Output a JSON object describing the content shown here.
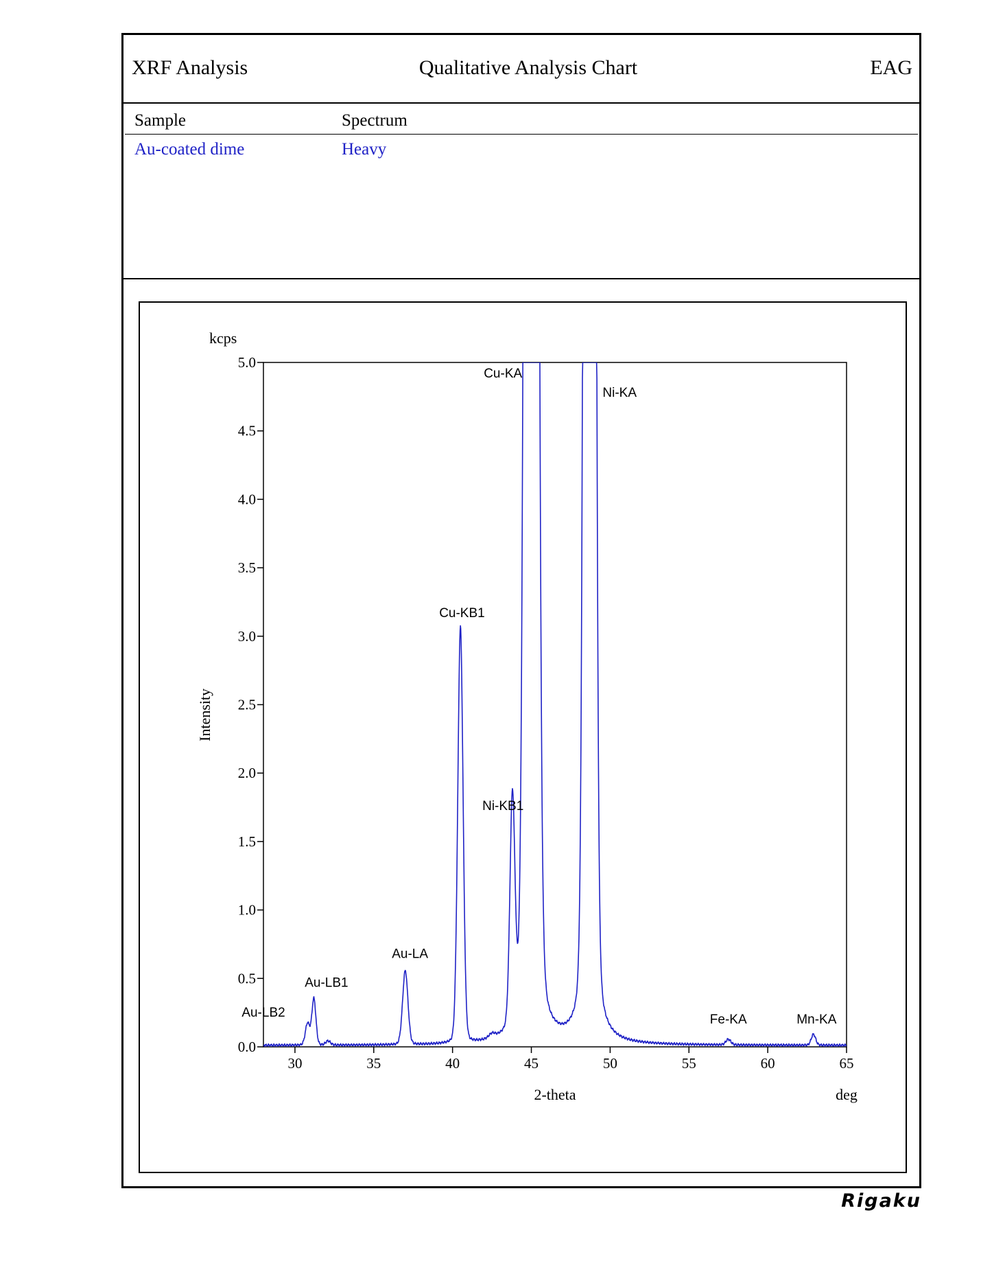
{
  "header": {
    "left_title": "XRF Analysis",
    "center_title": "Qualitative Analysis Chart",
    "right_title": "EAG"
  },
  "info": {
    "sample_label": "Sample",
    "spectrum_label": "Spectrum",
    "sample_value": "Au-coated dime",
    "spectrum_value": "Heavy"
  },
  "brand": {
    "name": "Rigaku"
  },
  "colors": {
    "trace": "#1f22c6",
    "text_value": "#1f22c6",
    "frame": "#000000"
  },
  "chart_data": {
    "type": "line",
    "title": "",
    "xlabel": "2-theta",
    "xunit": "deg",
    "ylabel": "Intensity",
    "yunit": "kcps",
    "xlim": [
      28,
      65
    ],
    "ylim": [
      0,
      5
    ],
    "x_ticks": [
      30,
      35,
      40,
      45,
      50,
      55,
      60,
      65
    ],
    "y_ticks": [
      "0.0",
      "0.5",
      "1.0",
      "1.5",
      "2.0",
      "2.5",
      "3.0",
      "3.5",
      "4.0",
      "4.5",
      "5.0"
    ],
    "grid": false,
    "baseline": 0.01,
    "peaks": [
      {
        "label": "Au-LB2",
        "x": 30.8,
        "y": 0.16,
        "width": 0.14,
        "label_x": 28.0,
        "label_y": 0.22
      },
      {
        "label": "Au-LB1",
        "x": 31.2,
        "y": 0.34,
        "width": 0.13,
        "label_x": 32.0,
        "label_y": 0.44
      },
      {
        "label": "",
        "x": 32.1,
        "y": 0.03,
        "width": 0.15
      },
      {
        "label": "Au-LA",
        "x": 37.0,
        "y": 0.54,
        "width": 0.17,
        "label_x": 37.3,
        "label_y": 0.65
      },
      {
        "label": "Cu-KB1",
        "x": 40.5,
        "y": 3.04,
        "width": 0.17,
        "label_x": 40.6,
        "label_y": 3.14
      },
      {
        "label": "",
        "x": 42.5,
        "y": 0.03,
        "width": 0.2
      },
      {
        "label": "Ni-KB1",
        "x": 43.8,
        "y": 1.65,
        "width": 0.16,
        "label_x": 43.2,
        "label_y": 1.73
      },
      {
        "label": "Cu-KA",
        "x": 45.0,
        "y": 5.0,
        "width": 0.26,
        "label_x": 43.2,
        "label_y": 4.89
      },
      {
        "label": "Ni-KA",
        "x": 48.7,
        "y": 5.0,
        "width": 0.22,
        "label_x": 50.6,
        "label_y": 4.75
      },
      {
        "label": "Fe-KA",
        "x": 57.5,
        "y": 0.04,
        "width": 0.16,
        "label_x": 57.5,
        "label_y": 0.17
      },
      {
        "label": "Mn-KA",
        "x": 62.9,
        "y": 0.08,
        "width": 0.14,
        "label_x": 63.1,
        "label_y": 0.17
      }
    ]
  }
}
